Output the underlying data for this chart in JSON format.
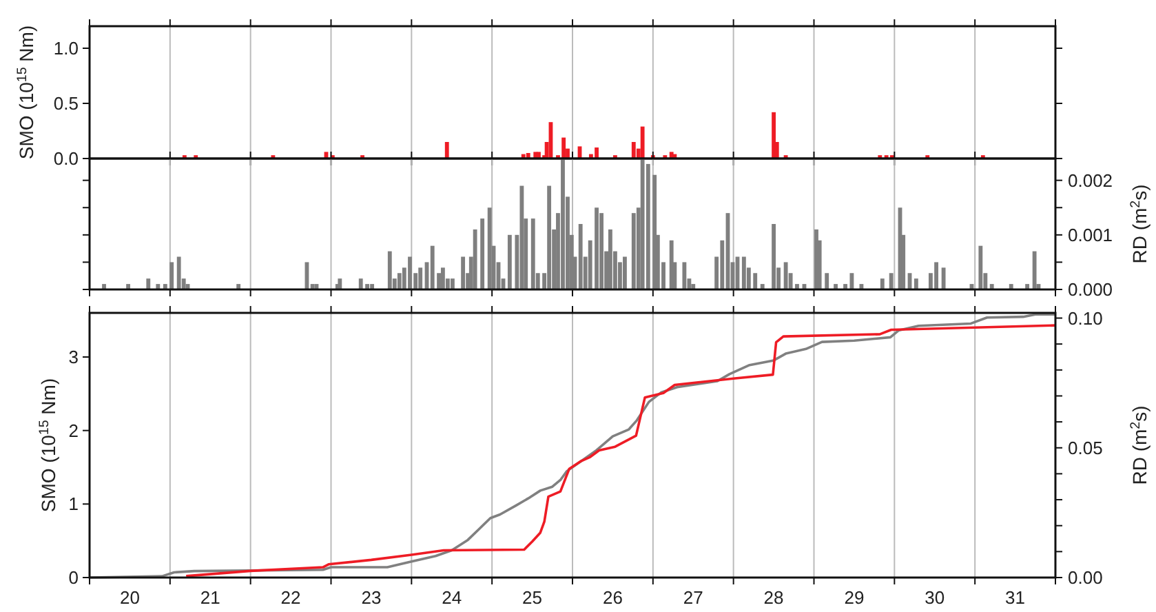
{
  "chart_data": [
    {
      "type": "bar",
      "ylabel": "SMO (10$^{15}$ Nm)",
      "color": "#ee1c25",
      "x": [
        21.18,
        21.32,
        22.28,
        22.94,
        23.02,
        23.39,
        24.44,
        25.39,
        25.45,
        25.54,
        25.58,
        25.65,
        25.68,
        25.73,
        25.82,
        25.89,
        25.94,
        26.09,
        26.23,
        26.3,
        26.53,
        26.76,
        26.82,
        26.87,
        27.0,
        27.15,
        27.23,
        27.27,
        28.5,
        28.54,
        28.65,
        29.82,
        29.9,
        29.97,
        30.41,
        31.1
      ],
      "values": [
        0.03,
        0.03,
        0.03,
        0.06,
        0.03,
        0.03,
        0.15,
        0.04,
        0.05,
        0.06,
        0.06,
        0.03,
        0.15,
        0.33,
        0.03,
        0.19,
        0.09,
        0.11,
        0.04,
        0.1,
        0.03,
        0.15,
        0.09,
        0.29,
        0.03,
        0.03,
        0.06,
        0.04,
        0.42,
        0.15,
        0.03,
        0.03,
        0.03,
        0.03,
        0.03,
        0.03
      ],
      "xlim": [
        20,
        32
      ],
      "xticks": [
        {
          "value": 20,
          "label": null
        },
        {
          "value": 21,
          "label": null
        },
        {
          "value": 22,
          "label": null
        },
        {
          "value": 23,
          "label": null
        },
        {
          "value": 24,
          "label": null
        },
        {
          "value": 25,
          "label": null
        },
        {
          "value": 26,
          "label": null
        },
        {
          "value": 27,
          "label": null
        },
        {
          "value": 28,
          "label": null
        },
        {
          "value": 29,
          "label": null
        },
        {
          "value": 30,
          "label": null
        },
        {
          "value": 31,
          "label": null
        },
        {
          "value": 32,
          "label": null
        }
      ],
      "ylim": [
        0,
        1.2
      ],
      "yticks": [
        {
          "value": 0,
          "label": "0.0"
        },
        {
          "value": 0.5,
          "label": "0.5"
        },
        {
          "value": 1,
          "label": "1.0"
        }
      ],
      "grid": "x",
      "tick_labels": "y"
    },
    {
      "type": "bar",
      "y2label": "RD (m$^{2}$s)",
      "series": [
        {
          "color": "#7f7f7f",
          "axis": "y2",
          "x": [
            20.18,
            20.48,
            20.73,
            20.85,
            20.94,
            21.02,
            21.11,
            21.17,
            21.22,
            21.85,
            22.7,
            22.77,
            22.82,
            23.08,
            23.11,
            23.37,
            23.45,
            23.51,
            23.73,
            23.79,
            23.85,
            23.91,
            23.98,
            24.05,
            24.11,
            24.19,
            24.26,
            24.34,
            24.39,
            24.45,
            24.51,
            24.64,
            24.7,
            24.74,
            24.79,
            24.88,
            24.97,
            25.02,
            25.08,
            25.14,
            25.22,
            25.31,
            25.37,
            25.42,
            25.51,
            25.57,
            25.65,
            25.71,
            25.77,
            25.82,
            25.88,
            25.94,
            25.99,
            26.03,
            26.1,
            26.16,
            26.22,
            26.3,
            26.36,
            26.42,
            26.47,
            26.53,
            26.59,
            26.65,
            26.76,
            26.82,
            26.87,
            26.94,
            27.02,
            27.06,
            27.13,
            27.23,
            27.27,
            27.39,
            27.45,
            27.5,
            27.79,
            27.86,
            27.93,
            27.99,
            28.05,
            28.13,
            28.19,
            28.27,
            28.36,
            28.5,
            28.56,
            28.65,
            28.71,
            28.79,
            28.88,
            29.03,
            29.07,
            29.16,
            29.27,
            29.39,
            29.47,
            29.59,
            29.85,
            29.96,
            30.07,
            30.11,
            30.19,
            30.27,
            30.45,
            30.52,
            30.61,
            30.96,
            31.07,
            31.13,
            31.21,
            31.45,
            31.65,
            31.74,
            31.79
          ],
          "values": [
            0.0001,
            0.0001,
            0.0002,
            0.0001,
            0.0001,
            0.0005,
            0.0006,
            0.0002,
            0.0001,
            0.0001,
            0.0005,
            0.0001,
            0.0001,
            0.0001,
            0.0002,
            0.0002,
            0.0001,
            0.0001,
            0.0007,
            0.0002,
            0.0003,
            0.0004,
            0.0006,
            0.0003,
            0.0004,
            0.0005,
            0.0008,
            0.0003,
            0.0004,
            0.0002,
            0.0002,
            0.0006,
            0.0003,
            0.0006,
            0.0011,
            0.0013,
            0.0015,
            0.0008,
            0.0005,
            0.0002,
            0.001,
            0.001,
            0.0019,
            0.0013,
            0.0013,
            0.0003,
            0.0003,
            0.0019,
            0.0011,
            0.0014,
            0.0024,
            0.0017,
            0.001,
            0.0006,
            0.0012,
            0.0006,
            0.0009,
            0.0015,
            0.0014,
            0.0007,
            0.0011,
            0.0007,
            0.0005,
            0.0006,
            0.0014,
            0.0015,
            0.0024,
            0.0023,
            0.0021,
            0.001,
            0.0005,
            0.0009,
            0.0005,
            0.0005,
            0.0002,
            0.0001,
            0.0006,
            0.0009,
            0.0014,
            0.0005,
            0.0006,
            0.0006,
            0.0004,
            0.0003,
            0.0001,
            0.0012,
            0.0004,
            0.0005,
            0.0003,
            0.0001,
            0.0001,
            0.0011,
            0.0009,
            0.0003,
            0.0001,
            0.0001,
            0.0003,
            0.0001,
            0.0002,
            0.0003,
            0.0015,
            0.001,
            0.0003,
            0.0002,
            0.0003,
            0.0005,
            0.0004,
            0.0001,
            0.0008,
            0.0003,
            0.0001,
            0.0001,
            0.0001,
            0.0007,
            0.0001
          ]
        }
      ],
      "xlim": [
        20,
        32
      ],
      "xticks": [
        {
          "value": 20,
          "label": null
        },
        {
          "value": 21,
          "label": null
        },
        {
          "value": 22,
          "label": null
        },
        {
          "value": 23,
          "label": null
        },
        {
          "value": 24,
          "label": null
        },
        {
          "value": 25,
          "label": null
        },
        {
          "value": 26,
          "label": null
        },
        {
          "value": 27,
          "label": null
        },
        {
          "value": 28,
          "label": null
        },
        {
          "value": 29,
          "label": null
        },
        {
          "value": 30,
          "label": null
        },
        {
          "value": 31,
          "label": null
        },
        {
          "value": 32,
          "label": null
        }
      ],
      "y2lim": [
        0,
        0.0024
      ],
      "y2ticks": [
        {
          "value": 0,
          "label": "0.000"
        },
        {
          "value": 0.0005,
          "label": null
        },
        {
          "value": 0.001,
          "label": "0.001"
        },
        {
          "value": 0.0015,
          "label": null
        },
        {
          "value": 0.002,
          "label": "0.002"
        }
      ],
      "grid": "x",
      "tick_labels": "y"
    },
    {
      "type": "line",
      "ylabel": "SMO (10$^{15}$ Nm)",
      "y2label": "RD (m$^{2}$s)",
      "series": [
        {
          "color": "#808080",
          "axis": "y2",
          "x": [
            20.0,
            20.9,
            21.05,
            21.3,
            22.9,
            23.0,
            23.7,
            24.0,
            24.3,
            24.5,
            24.7,
            24.85,
            24.98,
            25.1,
            25.3,
            25.45,
            25.6,
            25.75,
            25.85,
            25.93,
            26.1,
            26.3,
            26.5,
            26.7,
            26.8,
            26.95,
            27.1,
            27.3,
            27.6,
            27.8,
            27.95,
            28.2,
            28.5,
            28.65,
            28.9,
            29.1,
            29.5,
            29.95,
            30.05,
            30.3,
            30.95,
            31.15,
            31.6,
            31.75,
            32.0
          ],
          "values": [
            0,
            0.0005,
            0.002,
            0.0025,
            0.003,
            0.004,
            0.004,
            0.0062,
            0.0083,
            0.0105,
            0.0145,
            0.019,
            0.0229,
            0.0243,
            0.0278,
            0.0305,
            0.0335,
            0.035,
            0.0376,
            0.041,
            0.0447,
            0.0491,
            0.0544,
            0.0571,
            0.0606,
            0.0677,
            0.0713,
            0.0734,
            0.0748,
            0.0757,
            0.0784,
            0.0819,
            0.0837,
            0.0863,
            0.0881,
            0.0908,
            0.0913,
            0.0926,
            0.0952,
            0.097,
            0.0979,
            0.1002,
            0.1005,
            0.1014,
            0.1014
          ]
        },
        {
          "color": "#ee1c25",
          "axis": "y",
          "x": [
            21.2,
            22.0,
            22.9,
            22.97,
            23.5,
            24.0,
            24.4,
            25.4,
            25.5,
            25.6,
            25.65,
            25.7,
            25.85,
            25.96,
            26.1,
            26.22,
            26.33,
            26.53,
            26.79,
            26.9,
            27.13,
            27.27,
            28.02,
            28.49,
            28.53,
            28.62,
            29.82,
            29.96,
            32.0
          ],
          "values": [
            0.02,
            0.09,
            0.14,
            0.18,
            0.24,
            0.31,
            0.37,
            0.38,
            0.49,
            0.61,
            0.76,
            1.1,
            1.17,
            1.48,
            1.58,
            1.64,
            1.73,
            1.78,
            1.93,
            2.45,
            2.51,
            2.62,
            2.71,
            2.76,
            3.2,
            3.28,
            3.31,
            3.37,
            3.43
          ]
        }
      ],
      "xlim": [
        20,
        32
      ],
      "xticks": [
        {
          "value": 20,
          "label": null
        },
        {
          "value": 20.5,
          "label": "20"
        },
        {
          "value": 21,
          "label": null
        },
        {
          "value": 21.5,
          "label": "21"
        },
        {
          "value": 22,
          "label": null
        },
        {
          "value": 22.5,
          "label": "22"
        },
        {
          "value": 23,
          "label": null
        },
        {
          "value": 23.5,
          "label": "23"
        },
        {
          "value": 24,
          "label": null
        },
        {
          "value": 24.5,
          "label": "24"
        },
        {
          "value": 25,
          "label": null
        },
        {
          "value": 25.5,
          "label": "25"
        },
        {
          "value": 26,
          "label": null
        },
        {
          "value": 26.5,
          "label": "26"
        },
        {
          "value": 27,
          "label": null
        },
        {
          "value": 27.5,
          "label": "27"
        },
        {
          "value": 28,
          "label": null
        },
        {
          "value": 28.5,
          "label": "28"
        },
        {
          "value": 29,
          "label": null
        },
        {
          "value": 29.5,
          "label": "29"
        },
        {
          "value": 30,
          "label": null
        },
        {
          "value": 30.5,
          "label": "30"
        },
        {
          "value": 31,
          "label": null
        },
        {
          "value": 31.5,
          "label": "31"
        },
        {
          "value": 32,
          "label": null
        }
      ],
      "ylim": [
        0,
        3.6
      ],
      "yticks": [
        0,
        1,
        2,
        3
      ],
      "y2lim": [
        0,
        0.102
      ],
      "y2ticks": [
        {
          "value": 0,
          "label": "0.00"
        },
        {
          "value": 0.01,
          "label": null
        },
        {
          "value": 0.02,
          "label": null
        },
        {
          "value": 0.03,
          "label": null
        },
        {
          "value": 0.04,
          "label": null
        },
        {
          "value": 0.05,
          "label": "0.05"
        },
        {
          "value": 0.06,
          "label": null
        },
        {
          "value": 0.07,
          "label": null
        },
        {
          "value": 0.08,
          "label": null
        },
        {
          "value": 0.09,
          "label": null
        },
        {
          "value": 0.1,
          "label": "0.10"
        }
      ],
      "grid": "x"
    }
  ]
}
